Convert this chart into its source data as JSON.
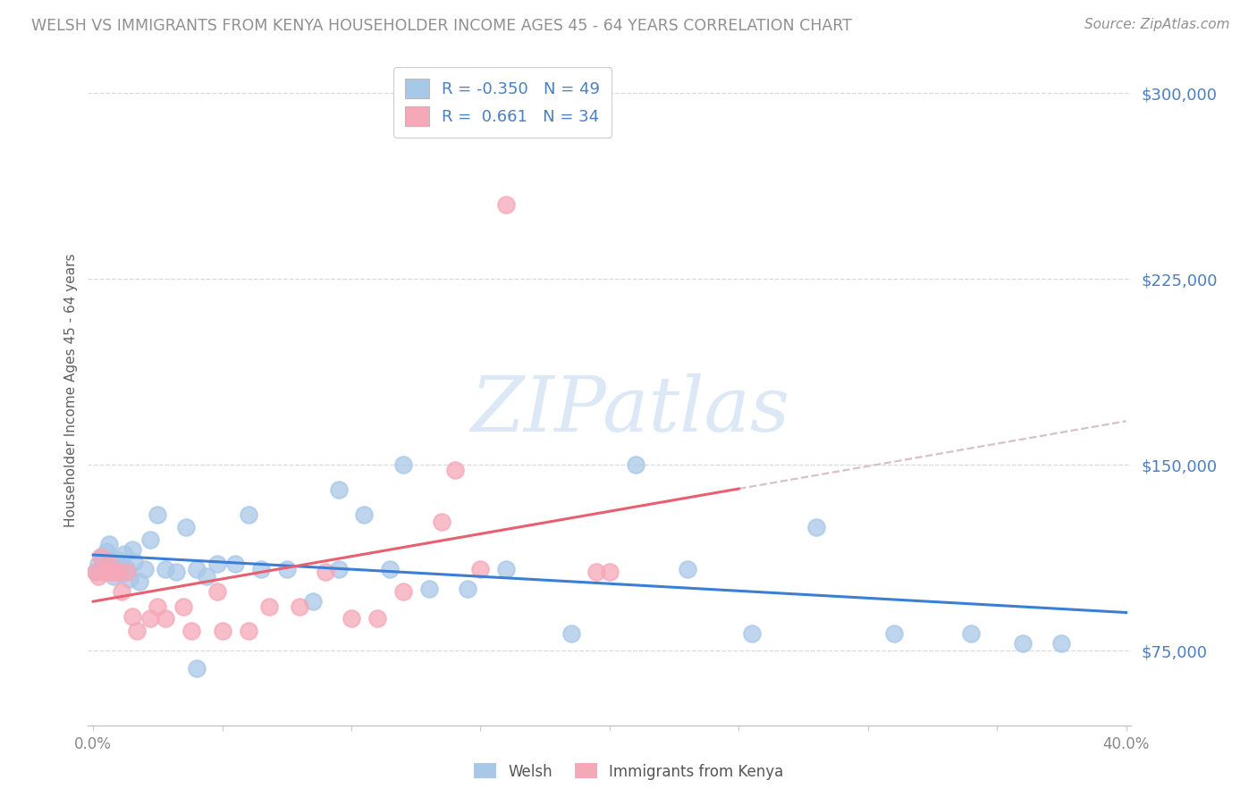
{
  "title": "WELSH VS IMMIGRANTS FROM KENYA HOUSEHOLDER INCOME AGES 45 - 64 YEARS CORRELATION CHART",
  "source": "Source: ZipAtlas.com",
  "ylabel": "Householder Income Ages 45 - 64 years",
  "xlim": [
    -0.002,
    0.402
  ],
  "ylim": [
    45000,
    315000
  ],
  "yticks": [
    75000,
    150000,
    225000,
    300000
  ],
  "xtick_positions": [
    0.0,
    0.05,
    0.1,
    0.15,
    0.2,
    0.25,
    0.3,
    0.35,
    0.4
  ],
  "welsh_R": -0.35,
  "welsh_N": 49,
  "kenya_R": 0.661,
  "kenya_N": 34,
  "welsh_dot_color": "#a8c8e8",
  "kenya_dot_color": "#f5a8b8",
  "welsh_line_color": "#3a7fd5",
  "kenya_line_color": "#e86070",
  "trend_dash_color": "#d8c0c8",
  "yaxis_tick_color": "#4a7fc1",
  "title_color": "#909090",
  "source_color": "#909090",
  "ylabel_color": "#606060",
  "legend_color": "#4a7fc1",
  "watermark_color": "#dce8f5",
  "bg_color": "#ffffff",
  "grid_color": "#d8d8d8",
  "welsh_x": [
    0.001,
    0.002,
    0.003,
    0.004,
    0.005,
    0.006,
    0.007,
    0.008,
    0.009,
    0.01,
    0.011,
    0.012,
    0.013,
    0.014,
    0.015,
    0.016,
    0.018,
    0.02,
    0.022,
    0.025,
    0.028,
    0.032,
    0.036,
    0.04,
    0.044,
    0.048,
    0.055,
    0.06,
    0.065,
    0.075,
    0.085,
    0.095,
    0.105,
    0.115,
    0.13,
    0.145,
    0.16,
    0.185,
    0.21,
    0.23,
    0.255,
    0.28,
    0.31,
    0.34,
    0.36,
    0.375,
    0.12,
    0.095,
    0.04
  ],
  "welsh_y": [
    107000,
    110000,
    113000,
    108000,
    115000,
    118000,
    110000,
    105000,
    112000,
    109000,
    106000,
    114000,
    108000,
    104000,
    116000,
    111000,
    103000,
    108000,
    120000,
    130000,
    108000,
    107000,
    125000,
    108000,
    105000,
    110000,
    110000,
    130000,
    108000,
    108000,
    95000,
    108000,
    130000,
    108000,
    100000,
    100000,
    108000,
    82000,
    150000,
    108000,
    82000,
    125000,
    82000,
    82000,
    78000,
    78000,
    150000,
    140000,
    68000
  ],
  "kenya_x": [
    0.001,
    0.002,
    0.003,
    0.004,
    0.005,
    0.006,
    0.007,
    0.008,
    0.009,
    0.01,
    0.011,
    0.013,
    0.015,
    0.017,
    0.022,
    0.028,
    0.038,
    0.048,
    0.06,
    0.1,
    0.11,
    0.12,
    0.135,
    0.15,
    0.16,
    0.2,
    0.14,
    0.035,
    0.09,
    0.08,
    0.05,
    0.068,
    0.025,
    0.195
  ],
  "kenya_y": [
    107000,
    105000,
    113000,
    107000,
    107000,
    110000,
    107000,
    107000,
    107000,
    107000,
    99000,
    107000,
    89000,
    83000,
    88000,
    88000,
    83000,
    99000,
    83000,
    88000,
    88000,
    99000,
    127000,
    108000,
    255000,
    107000,
    148000,
    93000,
    107000,
    93000,
    83000,
    93000,
    93000,
    107000
  ]
}
